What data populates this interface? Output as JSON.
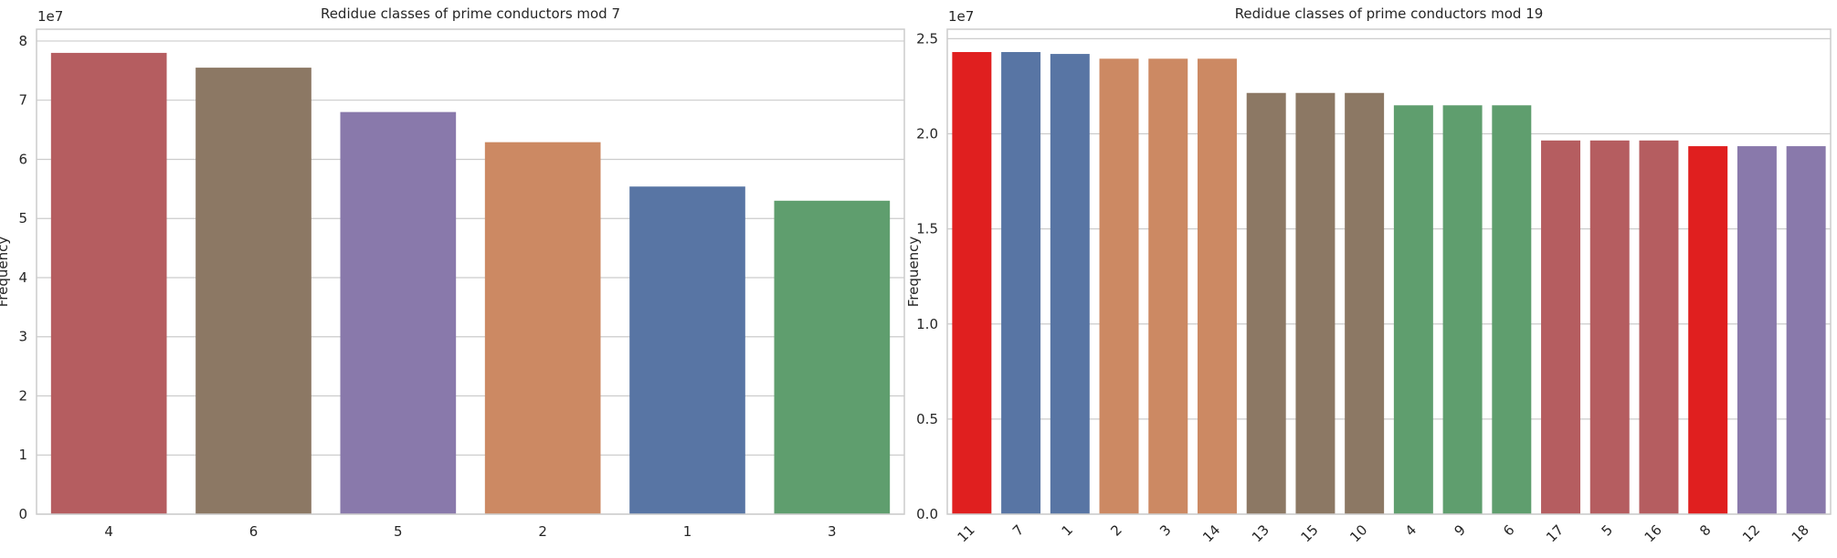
{
  "chart_data": [
    {
      "type": "bar",
      "title": "Redidue classes of prime conductors mod 7",
      "xlabel": "",
      "ylabel": "Frequency",
      "y_scale_label": "1e7",
      "ylim": [
        0,
        8.2
      ],
      "y_unit_multiplier": 10000000,
      "yticks": [
        "0",
        "1",
        "2",
        "3",
        "4",
        "5",
        "6",
        "7",
        "8"
      ],
      "grid": true,
      "x_tick_rotation": 0,
      "categories": [
        "4",
        "6",
        "5",
        "2",
        "1",
        "3"
      ],
      "values": [
        78000000,
        75500000,
        68000000,
        62900000,
        55400000,
        53000000
      ],
      "colors": [
        "#b55d60",
        "#8c7864",
        "#8979ab",
        "#cc8963",
        "#5875a4",
        "#5f9e6e"
      ]
    },
    {
      "type": "bar",
      "title": "Redidue classes of prime conductors mod 19",
      "xlabel": "",
      "ylabel": "Frequency",
      "y_scale_label": "1e7",
      "ylim": [
        0,
        2.55
      ],
      "y_unit_multiplier": 10000000,
      "yticks": [
        "0.0",
        "0.5",
        "1.0",
        "1.5",
        "2.0",
        "2.5"
      ],
      "grid": true,
      "x_tick_rotation": -45,
      "categories": [
        "11",
        "7",
        "1",
        "2",
        "3",
        "14",
        "13",
        "15",
        "10",
        "4",
        "9",
        "6",
        "17",
        "5",
        "16",
        "8",
        "12",
        "18"
      ],
      "values": [
        24300000,
        24300000,
        24200000,
        23950000,
        23950000,
        23950000,
        22150000,
        22150000,
        22150000,
        21500000,
        21500000,
        21500000,
        19650000,
        19650000,
        19650000,
        19350000,
        19350000,
        19350000
      ],
      "colors": [
        "#e01f1f",
        "#5875a4",
        "#5875a4",
        "#cc8963",
        "#cc8963",
        "#cc8963",
        "#8c7864",
        "#8c7864",
        "#8c7864",
        "#5f9e6e",
        "#5f9e6e",
        "#5f9e6e",
        "#b55d60",
        "#b55d60",
        "#b55d60",
        "#e01f1f",
        "#8979ab",
        "#8979ab"
      ]
    }
  ]
}
